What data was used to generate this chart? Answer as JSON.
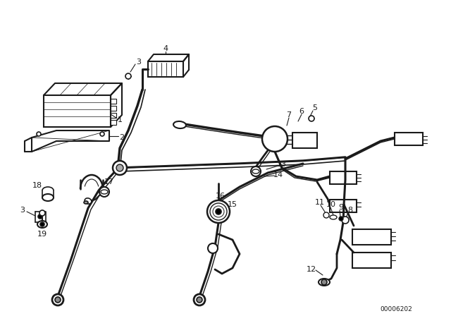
{
  "bg_color": "#ffffff",
  "line_color": "#1a1a1a",
  "diagram_number": "00006202",
  "lw_main": 2.0,
  "lw_thin": 1.2,
  "lw_hair": 0.7
}
